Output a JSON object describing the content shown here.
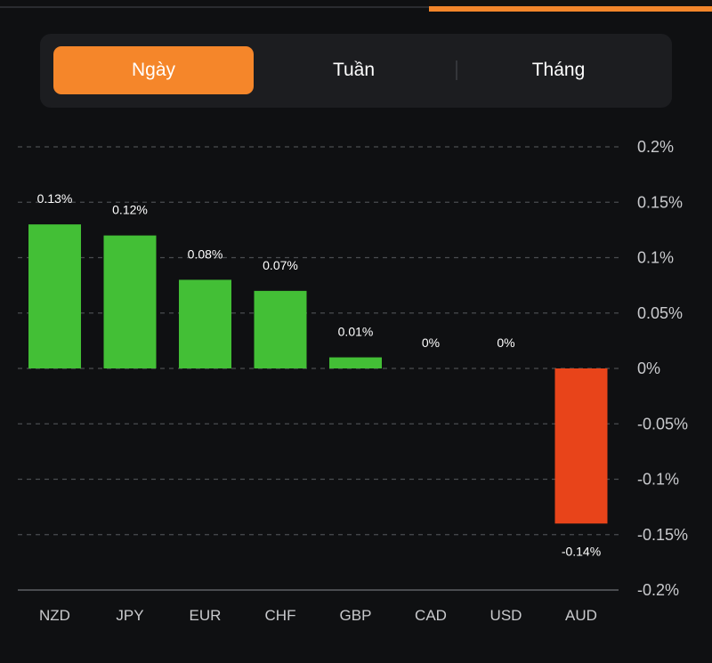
{
  "tabs": {
    "items": [
      {
        "label": "Ngày",
        "active": true
      },
      {
        "label": "Tuần",
        "active": false
      },
      {
        "label": "Tháng",
        "active": false
      }
    ]
  },
  "colors": {
    "accent": "#f5862a",
    "positive": "#43bf36",
    "negative": "#e8441a",
    "background": "#0f1012"
  },
  "chart_data": {
    "type": "bar",
    "title": "",
    "xlabel": "",
    "ylabel": "",
    "categories": [
      "NZD",
      "JPY",
      "EUR",
      "CHF",
      "GBP",
      "CAD",
      "USD",
      "AUD"
    ],
    "values": [
      0.13,
      0.12,
      0.08,
      0.07,
      0.01,
      0,
      0,
      -0.14
    ],
    "data_labels": [
      "0.13%",
      "0.12%",
      "0.08%",
      "0.07%",
      "0.01%",
      "0%",
      "0%",
      "-0.14%"
    ],
    "ylim": [
      -0.2,
      0.2
    ],
    "yticks": [
      0.2,
      0.15,
      0.1,
      0.05,
      0,
      -0.05,
      -0.1,
      -0.15,
      -0.2
    ],
    "ytick_labels": [
      "0.2%",
      "0.15%",
      "0.1%",
      "0.05%",
      "0%",
      "-0.05%",
      "-0.1%",
      "-0.15%",
      "-0.2%"
    ],
    "y_axis_position": "right",
    "grid": true,
    "legend": "none"
  }
}
